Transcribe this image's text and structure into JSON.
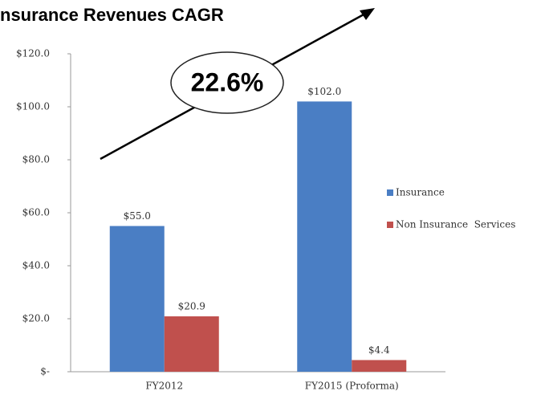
{
  "chart_data": {
    "type": "bar",
    "title": "nsurance Revenues CAGR",
    "annotation": "22.6%",
    "categories": [
      "FY2012",
      "FY2015 (Proforma)"
    ],
    "series": [
      {
        "name": "Insurance",
        "color": "#4a7ec4",
        "values": [
          55,
          102
        ],
        "value_labels": [
          "$55.0",
          "$102.0"
        ]
      },
      {
        "name": "Non Insurance  Services",
        "color": "#c0504d",
        "values": [
          20.9,
          4.4
        ],
        "value_labels": [
          "$20.9",
          "$4.4"
        ]
      }
    ],
    "ylim": [
      0,
      120
    ],
    "yticks": [
      {
        "value": 0,
        "label": "$-"
      },
      {
        "value": 20,
        "label": "$20.0"
      },
      {
        "value": 40,
        "label": "$40.0"
      },
      {
        "value": 60,
        "label": "$60.0"
      },
      {
        "value": 80,
        "label": "$80.0"
      },
      {
        "value": 100,
        "label": "$100.0"
      },
      {
        "value": 120,
        "label": "$120.0"
      }
    ],
    "grid": false,
    "legend": "right"
  }
}
